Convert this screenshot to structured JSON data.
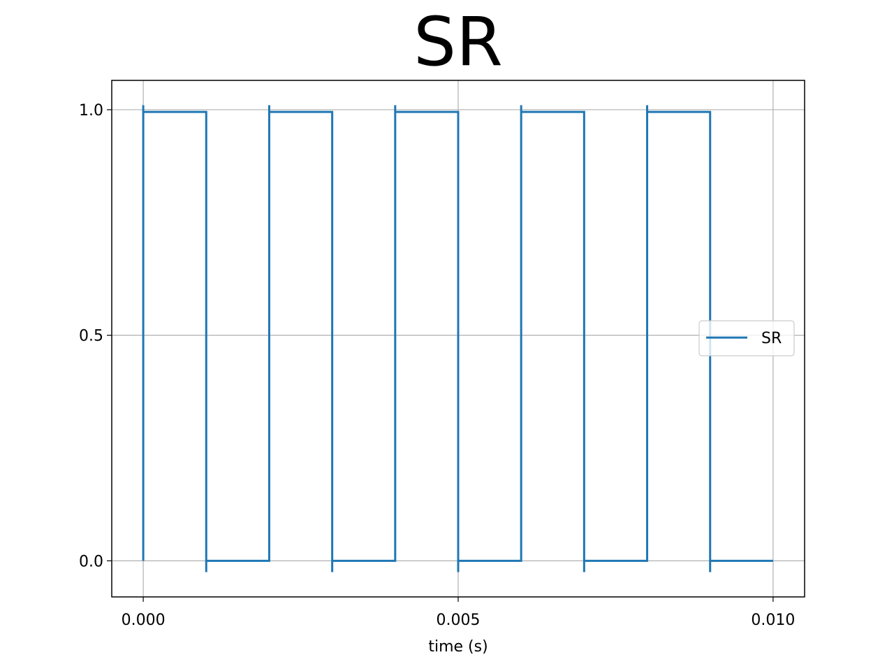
{
  "chart_data": {
    "type": "line",
    "title": "SR",
    "xlabel": "time (s)",
    "ylabel": "",
    "xlim": [
      -0.0005,
      0.0105
    ],
    "ylim": [
      -0.08,
      1.065
    ],
    "x_ticks": [
      {
        "value": 0.0,
        "label": "0.000"
      },
      {
        "value": 0.005,
        "label": "0.005"
      },
      {
        "value": 0.01,
        "label": "0.010"
      }
    ],
    "y_ticks": [
      {
        "value": 0.0,
        "label": "0.0"
      },
      {
        "value": 0.5,
        "label": "0.5"
      },
      {
        "value": 1.0,
        "label": "1.0"
      }
    ],
    "grid": true,
    "legend": {
      "position": "center-right"
    },
    "series": [
      {
        "name": "SR",
        "color": "#1f77b4",
        "x": [
          0.0,
          0.0,
          0.0,
          0.001,
          0.001,
          0.001,
          0.002,
          0.002,
          0.002,
          0.003,
          0.003,
          0.003,
          0.004,
          0.004,
          0.004,
          0.005,
          0.005,
          0.005,
          0.006,
          0.006,
          0.006,
          0.007,
          0.007,
          0.007,
          0.008,
          0.008,
          0.008,
          0.009,
          0.009,
          0.009,
          0.01
        ],
        "y": [
          0.0,
          1.01,
          0.995,
          0.995,
          -0.025,
          0.0,
          0.0,
          1.01,
          0.995,
          0.995,
          -0.025,
          0.0,
          0.0,
          1.01,
          0.995,
          0.995,
          -0.025,
          0.0,
          0.0,
          1.01,
          0.995,
          0.995,
          -0.025,
          0.0,
          0.0,
          1.01,
          0.995,
          0.995,
          -0.025,
          0.0,
          0.0
        ]
      }
    ]
  }
}
